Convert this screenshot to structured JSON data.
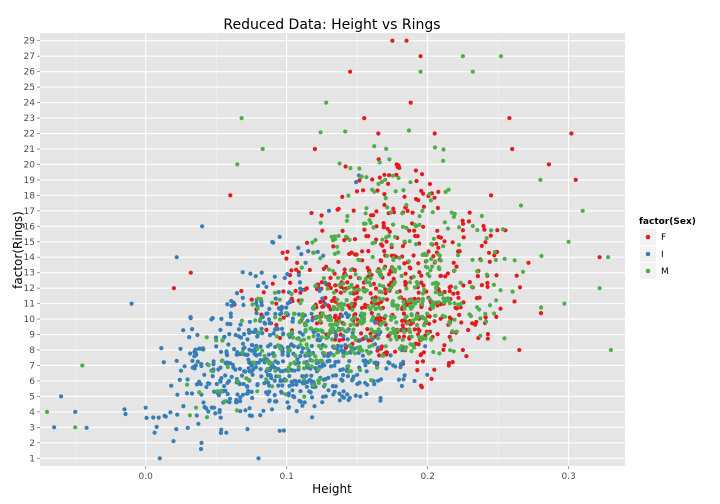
{
  "chart_data": {
    "type": "scatter",
    "title": "Reduced Data: Height vs Rings",
    "xlabel": "Height",
    "ylabel": "factor(Rings)",
    "xlim": [
      -0.075,
      0.34
    ],
    "x_ticks": [
      0.0,
      0.1,
      0.2,
      0.3
    ],
    "x_tick_labels": [
      "0.0",
      "0.1",
      "0.2",
      "0.3"
    ],
    "y_categories": [
      "1",
      "2",
      "3",
      "4",
      "5",
      "6",
      "7",
      "8",
      "9",
      "10",
      "11",
      "12",
      "13",
      "14",
      "15",
      "16",
      "17",
      "18",
      "19",
      "20",
      "21",
      "22",
      "23",
      "24",
      "25",
      "26",
      "27",
      "29"
    ],
    "grid": true,
    "jitter": true,
    "legend": {
      "title": "factor(Sex)",
      "position": "right",
      "entries": [
        {
          "label": "F",
          "color": "#e41a1c"
        },
        {
          "label": "I",
          "color": "#377eb8"
        },
        {
          "label": "M",
          "color": "#4daf4a"
        }
      ]
    },
    "series": [
      {
        "name": "F",
        "color": "#e41a1c",
        "points": [
          {
            "x": 0.145,
            "y": "26"
          },
          {
            "x": 0.175,
            "y": "29"
          },
          {
            "x": 0.185,
            "y": "29"
          },
          {
            "x": 0.195,
            "y": "27"
          },
          {
            "x": 0.188,
            "y": "24"
          },
          {
            "x": 0.155,
            "y": "23"
          },
          {
            "x": 0.165,
            "y": "22"
          },
          {
            "x": 0.302,
            "y": "22"
          },
          {
            "x": 0.305,
            "y": "19"
          },
          {
            "x": 0.286,
            "y": "20"
          },
          {
            "x": 0.258,
            "y": "23"
          },
          {
            "x": 0.06,
            "y": "18"
          },
          {
            "x": 0.032,
            "y": "13"
          },
          {
            "x": 0.02,
            "y": "12"
          },
          {
            "x": 0.322,
            "y": "14"
          },
          {
            "x": 0.225,
            "y": "8"
          },
          {
            "x": 0.215,
            "y": "7"
          },
          {
            "x": 0.265,
            "y": "8"
          },
          {
            "x": 0.12,
            "y": "21"
          },
          {
            "x": 0.178,
            "y": "20"
          },
          {
            "x": 0.205,
            "y": "22"
          },
          {
            "x": 0.26,
            "y": "21"
          },
          {
            "x": 0.245,
            "y": "18"
          }
        ],
        "dense_bands": [
          {
            "y": "6",
            "x_range": [
              0.18,
              0.21
            ],
            "count": 3
          },
          {
            "y": "7",
            "x_range": [
              0.13,
              0.25
            ],
            "count": 8
          },
          {
            "y": "8",
            "x_range": [
              0.08,
              0.27
            ],
            "count": 25
          },
          {
            "y": "9",
            "x_range": [
              0.06,
              0.28
            ],
            "count": 55
          },
          {
            "y": "10",
            "x_range": [
              0.05,
              0.29
            ],
            "count": 80
          },
          {
            "y": "11",
            "x_range": [
              0.05,
              0.29
            ],
            "count": 85
          },
          {
            "y": "12",
            "x_range": [
              0.05,
              0.28
            ],
            "count": 70
          },
          {
            "y": "13",
            "x_range": [
              0.04,
              0.29
            ],
            "count": 50
          },
          {
            "y": "14",
            "x_range": [
              0.06,
              0.31
            ],
            "count": 40
          },
          {
            "y": "15",
            "x_range": [
              0.07,
              0.3
            ],
            "count": 30
          },
          {
            "y": "16",
            "x_range": [
              0.08,
              0.29
            ],
            "count": 22
          },
          {
            "y": "17",
            "x_range": [
              0.09,
              0.27
            ],
            "count": 20
          },
          {
            "y": "18",
            "x_range": [
              0.1,
              0.26
            ],
            "count": 14
          },
          {
            "y": "19",
            "x_range": [
              0.11,
              0.24
            ],
            "count": 10
          },
          {
            "y": "20",
            "x_range": [
              0.12,
              0.22
            ],
            "count": 6
          }
        ]
      },
      {
        "name": "I",
        "color": "#377eb8",
        "points": [
          {
            "x": 0.01,
            "y": "1"
          },
          {
            "x": 0.08,
            "y": "1"
          },
          {
            "x": -0.065,
            "y": "3"
          },
          {
            "x": -0.05,
            "y": "4"
          },
          {
            "x": -0.06,
            "y": "5"
          },
          {
            "x": 0.04,
            "y": "16"
          },
          {
            "x": 0.022,
            "y": "14"
          },
          {
            "x": -0.01,
            "y": "11"
          },
          {
            "x": 0.13,
            "y": "17"
          }
        ],
        "dense_bands": [
          {
            "y": "2",
            "x_range": [
              0.0,
              0.1
            ],
            "count": 3
          },
          {
            "y": "3",
            "x_range": [
              -0.06,
              0.13
            ],
            "count": 12
          },
          {
            "y": "4",
            "x_range": [
              -0.06,
              0.17
            ],
            "count": 35
          },
          {
            "y": "5",
            "x_range": [
              -0.04,
              0.2
            ],
            "count": 70
          },
          {
            "y": "6",
            "x_range": [
              -0.03,
              0.22
            ],
            "count": 110
          },
          {
            "y": "7",
            "x_range": [
              -0.02,
              0.22
            ],
            "count": 120
          },
          {
            "y": "8",
            "x_range": [
              -0.01,
              0.22
            ],
            "count": 110
          },
          {
            "y": "9",
            "x_range": [
              0.0,
              0.2
            ],
            "count": 70
          },
          {
            "y": "10",
            "x_range": [
              0.0,
              0.19
            ],
            "count": 45
          },
          {
            "y": "11",
            "x_range": [
              0.02,
              0.17
            ],
            "count": 25
          },
          {
            "y": "12",
            "x_range": [
              0.03,
              0.16
            ],
            "count": 12
          },
          {
            "y": "13",
            "x_range": [
              0.04,
              0.15
            ],
            "count": 8
          },
          {
            "y": "14",
            "x_range": [
              0.05,
              0.15
            ],
            "count": 5
          },
          {
            "y": "15",
            "x_range": [
              0.06,
              0.14
            ],
            "count": 4
          },
          {
            "y": "19",
            "x_range": [
              0.14,
              0.16
            ],
            "count": 2
          }
        ]
      },
      {
        "name": "M",
        "color": "#4daf4a",
        "points": [
          {
            "x": 0.252,
            "y": "27"
          },
          {
            "x": 0.225,
            "y": "27"
          },
          {
            "x": 0.232,
            "y": "26"
          },
          {
            "x": 0.195,
            "y": "26"
          },
          {
            "x": 0.128,
            "y": "24"
          },
          {
            "x": 0.068,
            "y": "23"
          },
          {
            "x": 0.065,
            "y": "20"
          },
          {
            "x": 0.083,
            "y": "21"
          },
          {
            "x": -0.045,
            "y": "7"
          },
          {
            "x": -0.05,
            "y": "3"
          },
          {
            "x": -0.07,
            "y": "4"
          },
          {
            "x": 0.33,
            "y": "8"
          },
          {
            "x": 0.328,
            "y": "14"
          },
          {
            "x": 0.31,
            "y": "17"
          },
          {
            "x": 0.28,
            "y": "19"
          },
          {
            "x": 0.297,
            "y": "11"
          },
          {
            "x": 0.322,
            "y": "12"
          },
          {
            "x": 0.3,
            "y": "15"
          }
        ],
        "dense_bands": [
          {
            "y": "4",
            "x_range": [
              -0.04,
              0.1
            ],
            "count": 4
          },
          {
            "y": "5",
            "x_range": [
              -0.02,
              0.15
            ],
            "count": 8
          },
          {
            "y": "6",
            "x_range": [
              0.0,
              0.2
            ],
            "count": 15
          },
          {
            "y": "7",
            "x_range": [
              0.0,
              0.22
            ],
            "count": 30
          },
          {
            "y": "8",
            "x_range": [
              0.02,
              0.26
            ],
            "count": 55
          },
          {
            "y": "9",
            "x_range": [
              0.03,
              0.28
            ],
            "count": 75
          },
          {
            "y": "10",
            "x_range": [
              0.04,
              0.29
            ],
            "count": 85
          },
          {
            "y": "11",
            "x_range": [
              0.05,
              0.29
            ],
            "count": 80
          },
          {
            "y": "12",
            "x_range": [
              0.05,
              0.29
            ],
            "count": 55
          },
          {
            "y": "13",
            "x_range": [
              0.06,
              0.3
            ],
            "count": 40
          },
          {
            "y": "14",
            "x_range": [
              0.07,
              0.31
            ],
            "count": 30
          },
          {
            "y": "15",
            "x_range": [
              0.08,
              0.3
            ],
            "count": 25
          },
          {
            "y": "16",
            "x_range": [
              0.09,
              0.29
            ],
            "count": 20
          },
          {
            "y": "17",
            "x_range": [
              0.1,
              0.28
            ],
            "count": 15
          },
          {
            "y": "18",
            "x_range": [
              0.11,
              0.27
            ],
            "count": 10
          },
          {
            "y": "19",
            "x_range": [
              0.12,
              0.26
            ],
            "count": 8
          },
          {
            "y": "20",
            "x_range": [
              0.1,
              0.25
            ],
            "count": 6
          },
          {
            "y": "21",
            "x_range": [
              0.12,
              0.24
            ],
            "count": 4
          },
          {
            "y": "22",
            "x_range": [
              0.1,
              0.22
            ],
            "count": 3
          }
        ]
      }
    ]
  }
}
